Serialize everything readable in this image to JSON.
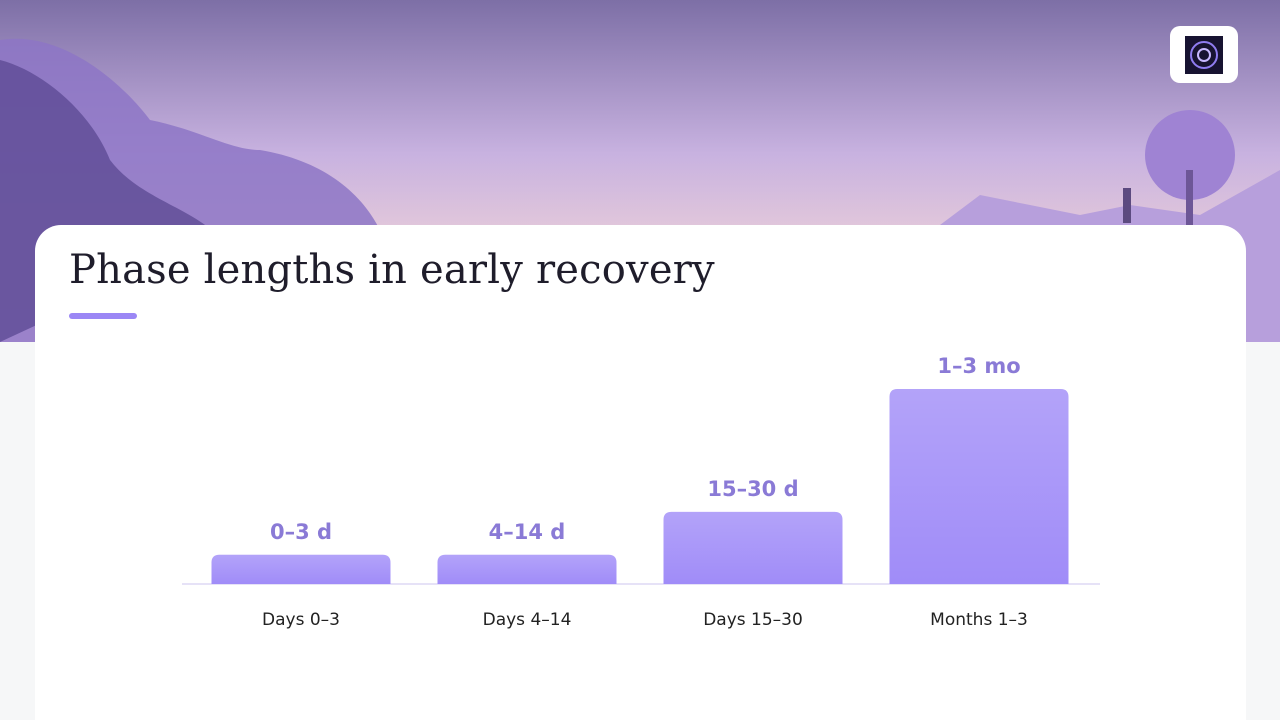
{
  "chart_data": {
    "type": "bar",
    "title": "Phase lengths in early recovery",
    "categories": [
      "Days 0–3",
      "Days 4–14",
      "Days 15–30",
      "Months 1–3"
    ],
    "values": [
      15,
      15,
      37,
      100
    ],
    "bar_labels": [
      "0–3 d",
      "4–14 d",
      "15–30 d",
      "1–3 mo"
    ],
    "color": "#a08cf8",
    "ylim": [
      0,
      100
    ]
  }
}
